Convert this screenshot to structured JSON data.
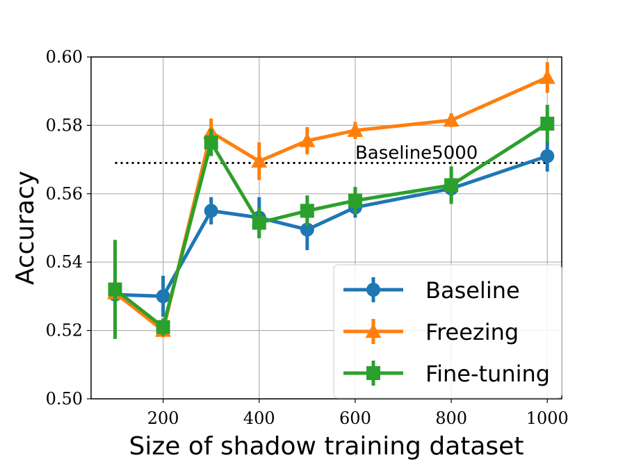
{
  "chart_data": {
    "type": "line",
    "title": "",
    "xlabel": "Size of shadow training dataset",
    "ylabel": "Accuracy",
    "xlim": [
      50,
      1030
    ],
    "ylim": [
      0.5,
      0.6
    ],
    "xticks": [
      200,
      400,
      600,
      800,
      1000
    ],
    "yticks": [
      0.5,
      0.52,
      0.54,
      0.56,
      0.58,
      0.6
    ],
    "ytick_labels": [
      "0.50",
      "0.52",
      "0.54",
      "0.56",
      "0.58",
      "0.60"
    ],
    "grid": true,
    "legend_position": "bottom-right",
    "x": [
      100,
      200,
      300,
      400,
      500,
      600,
      800,
      1000
    ],
    "series": [
      {
        "name": "Baseline",
        "color": "#1f77b4",
        "marker": "circle",
        "values": [
          0.5305,
          0.53,
          0.555,
          0.553,
          0.5495,
          0.556,
          0.5615,
          0.571
        ],
        "errors": [
          0.003,
          0.006,
          0.004,
          0.006,
          0.006,
          0.003,
          0.0035,
          0.0045
        ]
      },
      {
        "name": "Freezing",
        "color": "#ff7f0e",
        "marker": "triangle",
        "values": [
          0.531,
          0.52,
          0.578,
          0.5695,
          0.5755,
          0.5785,
          0.5815,
          0.594
        ],
        "errors": [
          0.002,
          0.002,
          0.004,
          0.0055,
          0.004,
          0.0025,
          0.002,
          0.0045
        ]
      },
      {
        "name": "Fine-tuning",
        "color": "#2ca02c",
        "marker": "square",
        "values": [
          0.532,
          0.521,
          0.575,
          0.5515,
          0.555,
          0.558,
          0.5625,
          0.5805
        ],
        "errors": [
          0.0145,
          0.0025,
          0.004,
          0.0045,
          0.0045,
          0.004,
          0.0055,
          0.0055
        ]
      }
    ],
    "annotations": [
      {
        "text": "Baseline5000",
        "y": 0.569,
        "x_range": [
          100,
          1000
        ],
        "label_x": 600,
        "style": "dotted"
      }
    ]
  }
}
